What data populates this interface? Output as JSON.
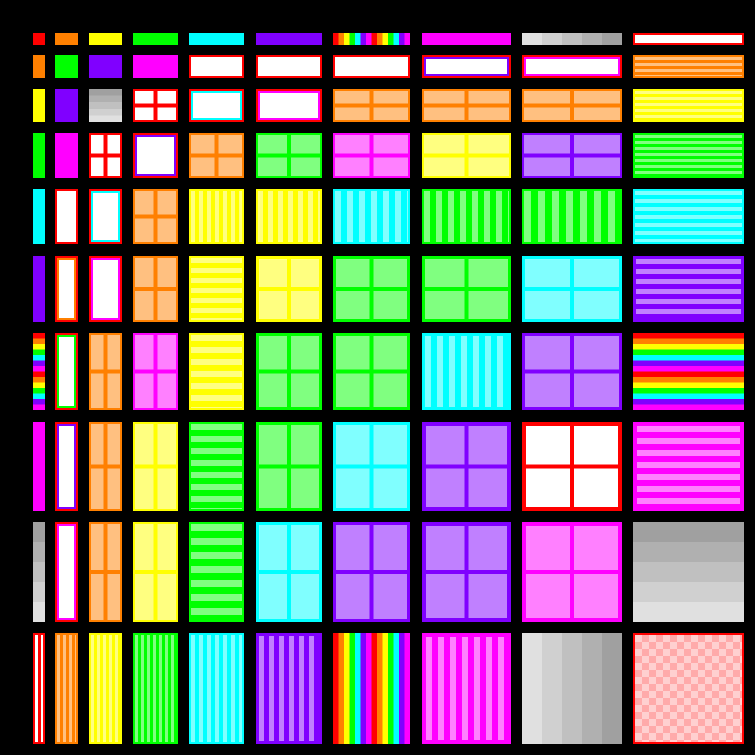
{
  "palette": {
    "R": "#ff0000",
    "O": "#ff8000",
    "Y": "#ffff00",
    "G": "#00ff00",
    "C": "#00ffff",
    "V": "#8000ff",
    "M": "#ff00ff",
    "K": "#a0a0a0",
    "P": "#ffaaaa"
  },
  "light": {
    "R": "#ffffff",
    "O": "#ffc080",
    "Y": "#ffff80",
    "G": "#80ff80",
    "C": "#80ffff",
    "V": "#c080ff",
    "M": "#ff80ff",
    "K": "#e0e0e0",
    "P": "#ffd0d0"
  },
  "grid": [
    [
      [
        "R",
        "solid"
      ],
      [
        "O",
        "solid"
      ],
      [
        "Y",
        "solid"
      ],
      [
        "G",
        "solid"
      ],
      [
        "C",
        "solid"
      ],
      [
        "V",
        "solid"
      ],
      [
        "R",
        "rainbow-v"
      ],
      [
        "M",
        "solid"
      ],
      [
        "K",
        "gray-v"
      ],
      [
        "R",
        "frame"
      ]
    ],
    [
      [
        "O",
        "solid"
      ],
      [
        "G",
        "solid"
      ],
      [
        "V",
        "solid"
      ],
      [
        "M",
        "solid"
      ],
      [
        "R",
        "frame"
      ],
      [
        "R",
        "frame"
      ],
      [
        "R",
        "frame"
      ],
      [
        "V",
        "frame"
      ],
      [
        "M",
        "frame"
      ],
      [
        "O",
        "hstripes"
      ]
    ],
    [
      [
        "Y",
        "solid"
      ],
      [
        "V",
        "solid"
      ],
      [
        "K",
        "gray-h"
      ],
      [
        "R",
        "panels"
      ],
      [
        "C",
        "frame"
      ],
      [
        "M",
        "frame"
      ],
      [
        "O",
        "panels"
      ],
      [
        "O",
        "panels"
      ],
      [
        "O",
        "panels"
      ],
      [
        "Y",
        "hstripes"
      ]
    ],
    [
      [
        "G",
        "solid"
      ],
      [
        "M",
        "solid"
      ],
      [
        "R",
        "panels"
      ],
      [
        "V",
        "frame"
      ],
      [
        "O",
        "panels"
      ],
      [
        "G",
        "panels"
      ],
      [
        "M",
        "panels"
      ],
      [
        "Y",
        "panels"
      ],
      [
        "V",
        "panels"
      ],
      [
        "G",
        "hstripes"
      ]
    ],
    [
      [
        "C",
        "solid"
      ],
      [
        "R",
        "frame"
      ],
      [
        "C",
        "frame"
      ],
      [
        "O",
        "panels"
      ],
      [
        "Y",
        "vstripes"
      ],
      [
        "Y",
        "vstripes"
      ],
      [
        "C",
        "vstripes"
      ],
      [
        "G",
        "vstripes"
      ],
      [
        "G",
        "vstripes"
      ],
      [
        "C",
        "hstripes"
      ]
    ],
    [
      [
        "V",
        "solid"
      ],
      [
        "O",
        "frame"
      ],
      [
        "M",
        "frame"
      ],
      [
        "O",
        "panels"
      ],
      [
        "Y",
        "hstripes"
      ],
      [
        "Y",
        "panels"
      ],
      [
        "G",
        "panels"
      ],
      [
        "G",
        "panels"
      ],
      [
        "C",
        "panels"
      ],
      [
        "V",
        "hstripes"
      ]
    ],
    [
      [
        "R",
        "rainbow-h"
      ],
      [
        "G",
        "frame"
      ],
      [
        "O",
        "panels"
      ],
      [
        "M",
        "panels"
      ],
      [
        "Y",
        "hstripes"
      ],
      [
        "G",
        "panels"
      ],
      [
        "G",
        "panels"
      ],
      [
        "C",
        "vstripes"
      ],
      [
        "V",
        "panels"
      ],
      [
        "R",
        "rainbow-h"
      ]
    ],
    [
      [
        "M",
        "solid"
      ],
      [
        "V",
        "frame"
      ],
      [
        "O",
        "panels"
      ],
      [
        "Y",
        "panels"
      ],
      [
        "G",
        "hstripes"
      ],
      [
        "G",
        "panels"
      ],
      [
        "C",
        "panels"
      ],
      [
        "V",
        "panels"
      ],
      [
        "R",
        "panels"
      ],
      [
        "M",
        "hstripes"
      ]
    ],
    [
      [
        "K",
        "gray-h"
      ],
      [
        "M",
        "frame"
      ],
      [
        "O",
        "panels"
      ],
      [
        "Y",
        "panels"
      ],
      [
        "G",
        "hstripes"
      ],
      [
        "C",
        "panels"
      ],
      [
        "V",
        "panels"
      ],
      [
        "V",
        "panels"
      ],
      [
        "M",
        "panels"
      ],
      [
        "K",
        "gray-h"
      ]
    ],
    [
      [
        "R",
        "vframe"
      ],
      [
        "O",
        "vstripes"
      ],
      [
        "Y",
        "vstripes"
      ],
      [
        "G",
        "vstripes"
      ],
      [
        "C",
        "vstripes"
      ],
      [
        "V",
        "vstripes"
      ],
      [
        "R",
        "rainbow-v"
      ],
      [
        "M",
        "vstripes"
      ],
      [
        "K",
        "gray-v"
      ],
      [
        "P",
        "checker"
      ]
    ]
  ]
}
